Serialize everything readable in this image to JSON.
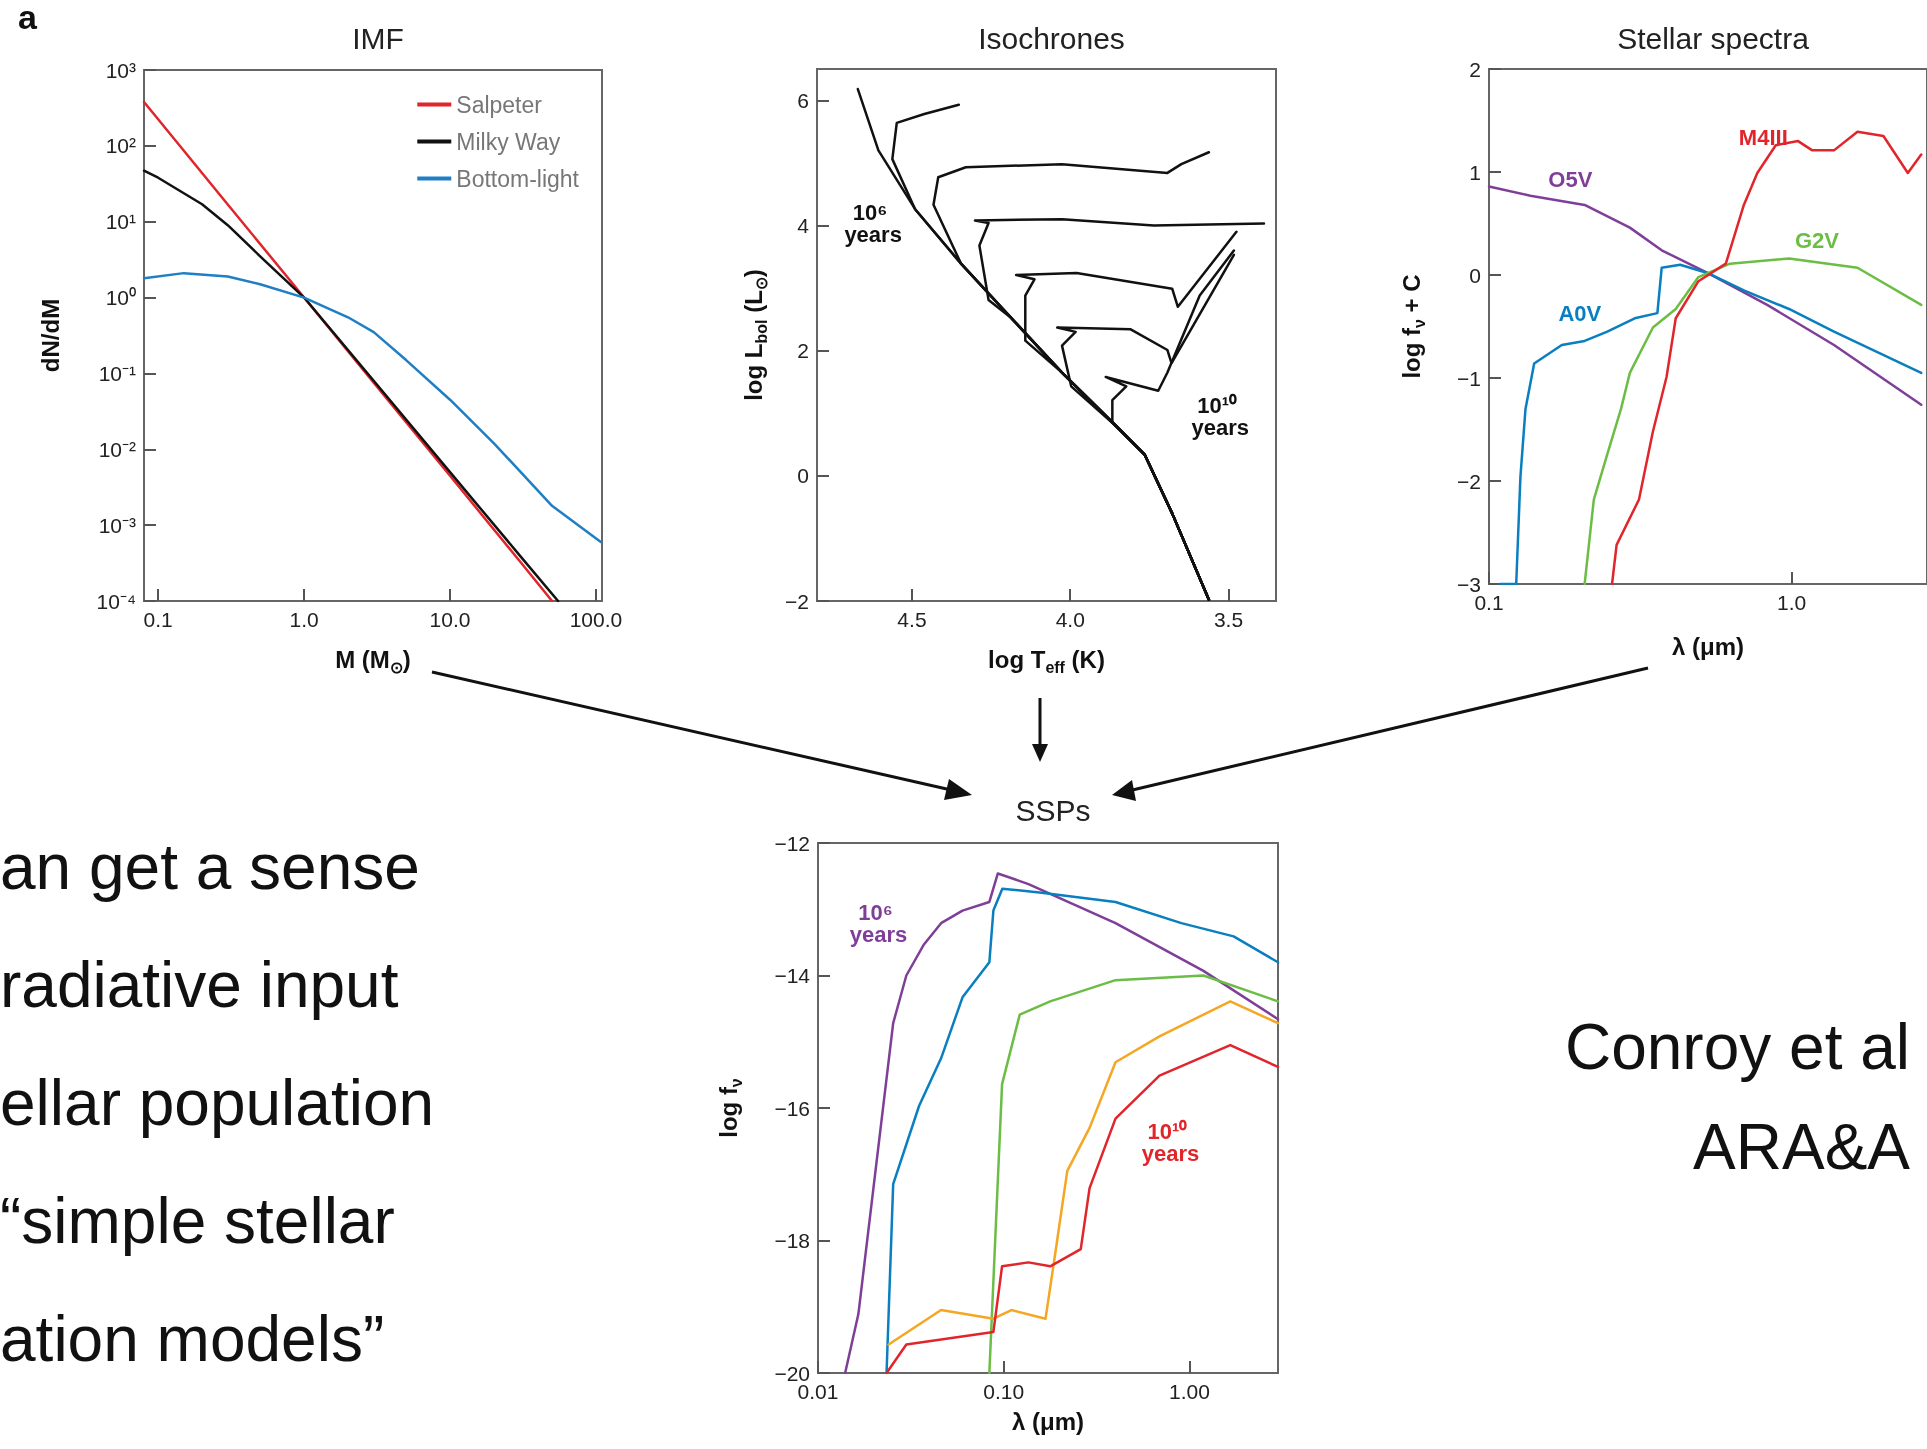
{
  "chart_data": [
    {
      "type": "line",
      "title": "IMF",
      "xlabel": "M (M$_{⊙}$)",
      "ylabel": "dN/dM",
      "log": "xy",
      "marker": "none",
      "legend": "top right",
      "annotations": [
        "a"
      ],
      "xlim": [
        0.08,
        110
      ],
      "xticks": [
        0.1,
        {
          "value": 1,
          "label": "1.0"
        },
        {
          "value": 10,
          "label": "10.0"
        },
        {
          "value": 100,
          "label": "100.0"
        }
      ],
      "ylim": [
        0.0001,
        1000
      ],
      "yticks": [
        {
          "value": 0.0001,
          "label": "10⁻⁴"
        },
        {
          "value": 0.001,
          "label": "10⁻³"
        },
        {
          "value": 0.01,
          "label": "10⁻²"
        },
        {
          "value": 0.1,
          "label": "10⁻¹"
        },
        {
          "value": 1,
          "label": "10⁰"
        },
        {
          "value": 10,
          "label": "10¹"
        },
        {
          "value": 100,
          "label": "10²"
        },
        {
          "value": 1000,
          "label": "10³"
        }
      ],
      "series": [
        {
          "name": "Salpeter",
          "color": "#e0252b",
          "x": [
            0.08,
            0.1,
            0.3,
            1,
            3,
            10,
            30,
            50
          ],
          "values": [
            378,
            224,
            16.9,
            1,
            0.0756,
            0.00447,
            0.000336,
            0.0001
          ]
        },
        {
          "name": "Milky Way",
          "color": "#111111",
          "x": [
            0.08,
            0.1,
            0.2,
            0.3,
            0.5,
            0.7,
            1,
            3,
            10,
            30,
            55
          ],
          "values": [
            47,
            38,
            17,
            9,
            3.5,
            1.9,
            1,
            0.08,
            0.005,
            0.0004,
            0.0001
          ]
        },
        {
          "name": "Bottom-light",
          "color": "#1f7fc4",
          "x": [
            0.08,
            0.15,
            0.3,
            0.5,
            1,
            2,
            3,
            5,
            10,
            20,
            50,
            108
          ],
          "values": [
            1.8,
            2.1,
            1.9,
            1.5,
            1.0,
            0.55,
            0.35,
            0.15,
            0.045,
            0.012,
            0.0018,
            0.0006
          ]
        }
      ]
    },
    {
      "type": "line",
      "title": "Isochrones",
      "xlabel": "log T$_{eff}$ (K)",
      "ylabel": "log L$_{bol}$ (L$_{⊙}$)",
      "marker": "none",
      "xlim": [
        4.8,
        3.35
      ],
      "xticks": [
        4.5,
        {
          "value": 4,
          "label": "4.0"
        },
        3.5
      ],
      "ylim": [
        -2,
        6.5
      ],
      "yticks": [
        -2,
        0,
        2,
        4,
        6
      ],
      "series": [
        {
          "name": "10⁶ years",
          "color": "#111111",
          "x": [
            3.562,
            3.678,
            3.765,
            3.852,
            4.026,
            4.186,
            4.345,
            4.49,
            4.606,
            4.671
          ],
          "values": [
            -1.98,
            -0.6,
            0.34,
            0.78,
            1.65,
            2.52,
            3.39,
            4.26,
            5.2,
            6.18
          ]
        },
        {
          "color": "#111111",
          "x": [
            3.562,
            3.678,
            3.765,
            3.852,
            4.026,
            4.186,
            4.345,
            4.49,
            4.562,
            4.548,
            4.461,
            4.352
          ],
          "values": [
            -1.98,
            -0.6,
            0.34,
            0.78,
            1.65,
            2.52,
            3.39,
            4.26,
            5.06,
            5.64,
            5.78,
            5.93
          ]
        },
        {
          "color": "#111111",
          "x": [
            3.562,
            3.678,
            3.765,
            3.852,
            4.026,
            4.186,
            4.345,
            4.432,
            4.417,
            4.33,
            4.026,
            3.693,
            3.649,
            3.562
          ],
          "values": [
            -1.98,
            -0.6,
            0.34,
            0.78,
            1.65,
            2.52,
            3.39,
            4.33,
            4.77,
            4.93,
            4.98,
            4.84,
            4.98,
            5.17
          ]
        },
        {
          "color": "#111111",
          "x": [
            3.562,
            3.678,
            3.765,
            3.852,
            4.026,
            4.186,
            4.258,
            4.287,
            4.258,
            4.301,
            4.026,
            3.736,
            3.388
          ],
          "values": [
            -1.98,
            -0.6,
            0.34,
            0.78,
            1.65,
            2.52,
            2.81,
            3.68,
            4.04,
            4.08,
            4.1,
            4.0,
            4.03
          ]
        },
        {
          "color": "#111111",
          "x": [
            3.562,
            3.678,
            3.765,
            3.852,
            4.026,
            4.142,
            4.142,
            4.113,
            4.171,
            3.98,
            3.678,
            3.66,
            3.475
          ],
          "values": [
            -1.98,
            -0.6,
            0.34,
            0.78,
            1.65,
            2.16,
            2.88,
            3.14,
            3.21,
            3.24,
            2.99,
            2.7,
            3.9
          ]
        },
        {
          "color": "#111111",
          "x": [
            3.562,
            3.678,
            3.765,
            3.852,
            3.997,
            4.026,
            3.983,
            4.041,
            3.809,
            3.693,
            3.68,
            3.483
          ],
          "values": [
            -1.98,
            -0.6,
            0.34,
            0.78,
            1.43,
            2.08,
            2.3,
            2.37,
            2.34,
            2.01,
            1.8,
            3.53
          ]
        },
        {
          "name": "10¹⁰ years",
          "color": "#111111",
          "x": [
            3.562,
            3.678,
            3.765,
            3.867,
            3.867,
            3.823,
            3.888,
            3.722,
            3.693,
            3.591,
            3.483
          ],
          "values": [
            -1.98,
            -0.6,
            0.34,
            0.85,
            1.21,
            1.43,
            1.58,
            1.36,
            1.65,
            2.88,
            3.6
          ]
        }
      ]
    },
    {
      "type": "line",
      "title": "Stellar spectra",
      "xlabel": "λ (μm)",
      "ylabel": "log f$_{ν}$ + C",
      "log": "x",
      "marker": "none",
      "xlim": [
        0.1,
        2.8
      ],
      "xticks": [
        0.1,
        {
          "value": 1,
          "label": "1.0"
        }
      ],
      "ylim": [
        -3,
        2
      ],
      "yticks": [
        -3,
        -2,
        -1,
        0,
        1,
        2
      ],
      "series": [
        {
          "name": "O5V",
          "color": "#7f3f98",
          "x": [
            0.1,
            0.137,
            0.207,
            0.292,
            0.372,
            0.527,
            0.83,
            1.38,
            2.68
          ],
          "values": [
            0.86,
            0.77,
            0.68,
            0.46,
            0.24,
            0.02,
            -0.29,
            -0.68,
            -1.26
          ]
        },
        {
          "name": "A0V",
          "color": "#0a7fc0",
          "x": [
            0.109,
            0.123,
            0.127,
            0.132,
            0.141,
            0.174,
            0.207,
            0.246,
            0.303,
            0.36,
            0.372,
            0.428,
            0.527,
            0.695,
            0.98,
            1.38,
            2.68
          ],
          "values": [
            -3.0,
            -3.0,
            -1.96,
            -1.3,
            -0.86,
            -0.68,
            -0.64,
            -0.55,
            -0.42,
            -0.37,
            0.07,
            0.1,
            0.02,
            -0.15,
            -0.33,
            -0.55,
            -0.95
          ]
        },
        {
          "name": "G2V",
          "color": "#6cbd45",
          "x": [
            0.207,
            0.222,
            0.246,
            0.273,
            0.292,
            0.348,
            0.414,
            0.492,
            0.626,
            0.98,
            1.65,
            2.68
          ],
          "values": [
            -3.0,
            -2.18,
            -1.74,
            -1.3,
            -0.95,
            -0.51,
            -0.33,
            -0.02,
            0.11,
            0.16,
            0.07,
            -0.29
          ]
        },
        {
          "name": "M4III",
          "color": "#e0252b",
          "x": [
            0.255,
            0.264,
            0.313,
            0.348,
            0.386,
            0.414,
            0.492,
            0.606,
            0.695,
            0.77,
            0.886,
            1.05,
            1.17,
            1.38,
            1.65,
            2.01,
            2.42,
            2.68
          ],
          "values": [
            -3.0,
            -2.62,
            -2.18,
            -1.52,
            -0.99,
            -0.42,
            -0.06,
            0.11,
            0.68,
            0.99,
            1.26,
            1.3,
            1.21,
            1.21,
            1.39,
            1.35,
            0.99,
            1.17
          ]
        }
      ]
    },
    {
      "type": "other",
      "annotations": [
        "an get a sense",
        "radiative input",
        "ellar population",
        "“simple stellar",
        "ation models”"
      ]
    },
    {
      "type": "line",
      "title": "SSPs",
      "xlabel": "λ (μm)",
      "ylabel": "log f$_{ν}$",
      "log": "x",
      "marker": "none",
      "xlim": [
        0.01,
        3
      ],
      "xticks": [
        0.01,
        {
          "value": 0.1,
          "label": "0.10"
        },
        {
          "value": 1,
          "label": "1.00"
        }
      ],
      "ylim": [
        -20,
        -12
      ],
      "yticks": [
        -20,
        -18,
        -16,
        -14,
        -12
      ],
      "series": [
        {
          "name": "10⁶ years",
          "color": "#7f3f98",
          "x": [
            0.014,
            0.0165,
            0.0204,
            0.0254,
            0.0299,
            0.037,
            0.046,
            0.06,
            0.0837,
            0.093,
            0.136,
            0.4,
            1.19,
            3.0
          ],
          "values": [
            -20,
            -19.11,
            -16.95,
            -14.72,
            -14.0,
            -13.54,
            -13.21,
            -13.02,
            -12.89,
            -12.46,
            -12.62,
            -13.21,
            -13.93,
            -14.66
          ]
        },
        {
          "color": "#0a7fc0",
          "x": [
            0.0234,
            0.0254,
            0.035,
            0.046,
            0.06,
            0.0837,
            0.088,
            0.0983,
            0.16,
            0.4,
            0.905,
            1.73,
            3.0
          ],
          "values": [
            -20,
            -17.15,
            -15.97,
            -15.25,
            -14.33,
            -13.8,
            -13.02,
            -12.69,
            -12.75,
            -12.89,
            -13.21,
            -13.41,
            -13.8
          ]
        },
        {
          "color": "#6cbd45",
          "x": [
            0.0837,
            0.098,
            0.122,
            0.178,
            0.4,
            1.19,
            3.0
          ],
          "values": [
            -20,
            -15.64,
            -14.59,
            -14.39,
            -14.07,
            -14.0,
            -14.39
          ]
        },
        {
          "color": "#f5a623",
          "x": [
            0.024,
            0.046,
            0.088,
            0.11,
            0.168,
            0.188,
            0.22,
            0.29,
            0.4,
            0.69,
            1.66,
            3.0
          ],
          "values": [
            -19.57,
            -19.05,
            -19.18,
            -19.05,
            -19.18,
            -18.26,
            -16.95,
            -16.3,
            -15.31,
            -14.92,
            -14.39,
            -14.72
          ]
        },
        {
          "name": "10¹⁰ years",
          "color": "#e0252b",
          "x": [
            0.0234,
            0.0299,
            0.088,
            0.098,
            0.136,
            0.178,
            0.26,
            0.29,
            0.4,
            0.69,
            1.66,
            3.0
          ],
          "values": [
            -20,
            -19.57,
            -19.38,
            -18.39,
            -18.33,
            -18.39,
            -18.13,
            -17.21,
            -16.16,
            -15.51,
            -15.05,
            -15.38
          ]
        }
      ]
    },
    {
      "type": "other",
      "annotations": [
        "Conroy et al",
        "ARA&A"
      ]
    }
  ]
}
